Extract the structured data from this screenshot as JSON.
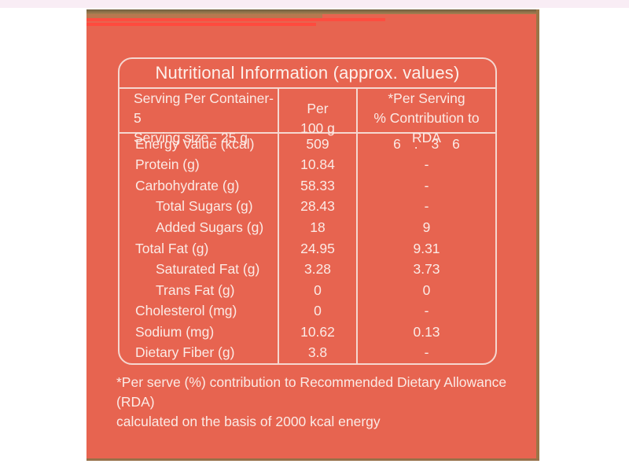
{
  "nutrition_label": {
    "title": "Nutritional Information (approx. values)",
    "columns": {
      "serving_line1": "Serving Per Container-5",
      "serving_line2": "Serving size - 25 g",
      "per100_line1": "Per",
      "per100_line2": "100 g",
      "rda_line1": "*Per Serving",
      "rda_line2": "% Contribution to RDA"
    },
    "rows": [
      {
        "label": "Energy Value (kcal)",
        "per_100g": "509",
        "rda": "6 . 3 6"
      },
      {
        "label": "Protein (g)",
        "per_100g": "10.84",
        "rda": "-"
      },
      {
        "label": "Carbohydrate (g)",
        "per_100g": "58.33",
        "rda": "-"
      },
      {
        "label": "Total Sugars (g)",
        "per_100g": "28.43",
        "rda": "-"
      },
      {
        "label": "Added Sugars (g)",
        "per_100g": "18",
        "rda": "9"
      },
      {
        "label": "Total Fat (g)",
        "per_100g": "24.95",
        "rda": "9.31"
      },
      {
        "label": "Saturated Fat (g)",
        "per_100g": "3.28",
        "rda": "3.73"
      },
      {
        "label": "Trans Fat (g)",
        "per_100g": "0",
        "rda": "0"
      },
      {
        "label": "Cholesterol (mg)",
        "per_100g": "0",
        "rda": "-"
      },
      {
        "label": "Sodium (mg)",
        "per_100g": "10.62",
        "rda": "0.13"
      },
      {
        "label": "Dietary Fiber (g)",
        "per_100g": "3.8",
        "rda": "-"
      }
    ],
    "footnote_line1": "*Per serve (%) contribution to Recommended Dietary Allowance (RDA)",
    "footnote_line2": "calculated on the basis of 2000 kcal energy"
  },
  "colors": {
    "page_background": "#ffffff",
    "label_background": "#e76450",
    "text": "#fbeae5",
    "grid_lines": "#f5d7d0",
    "package_edge_tan": "#a37d4e",
    "package_stripe_red": "#ff4a3e"
  }
}
